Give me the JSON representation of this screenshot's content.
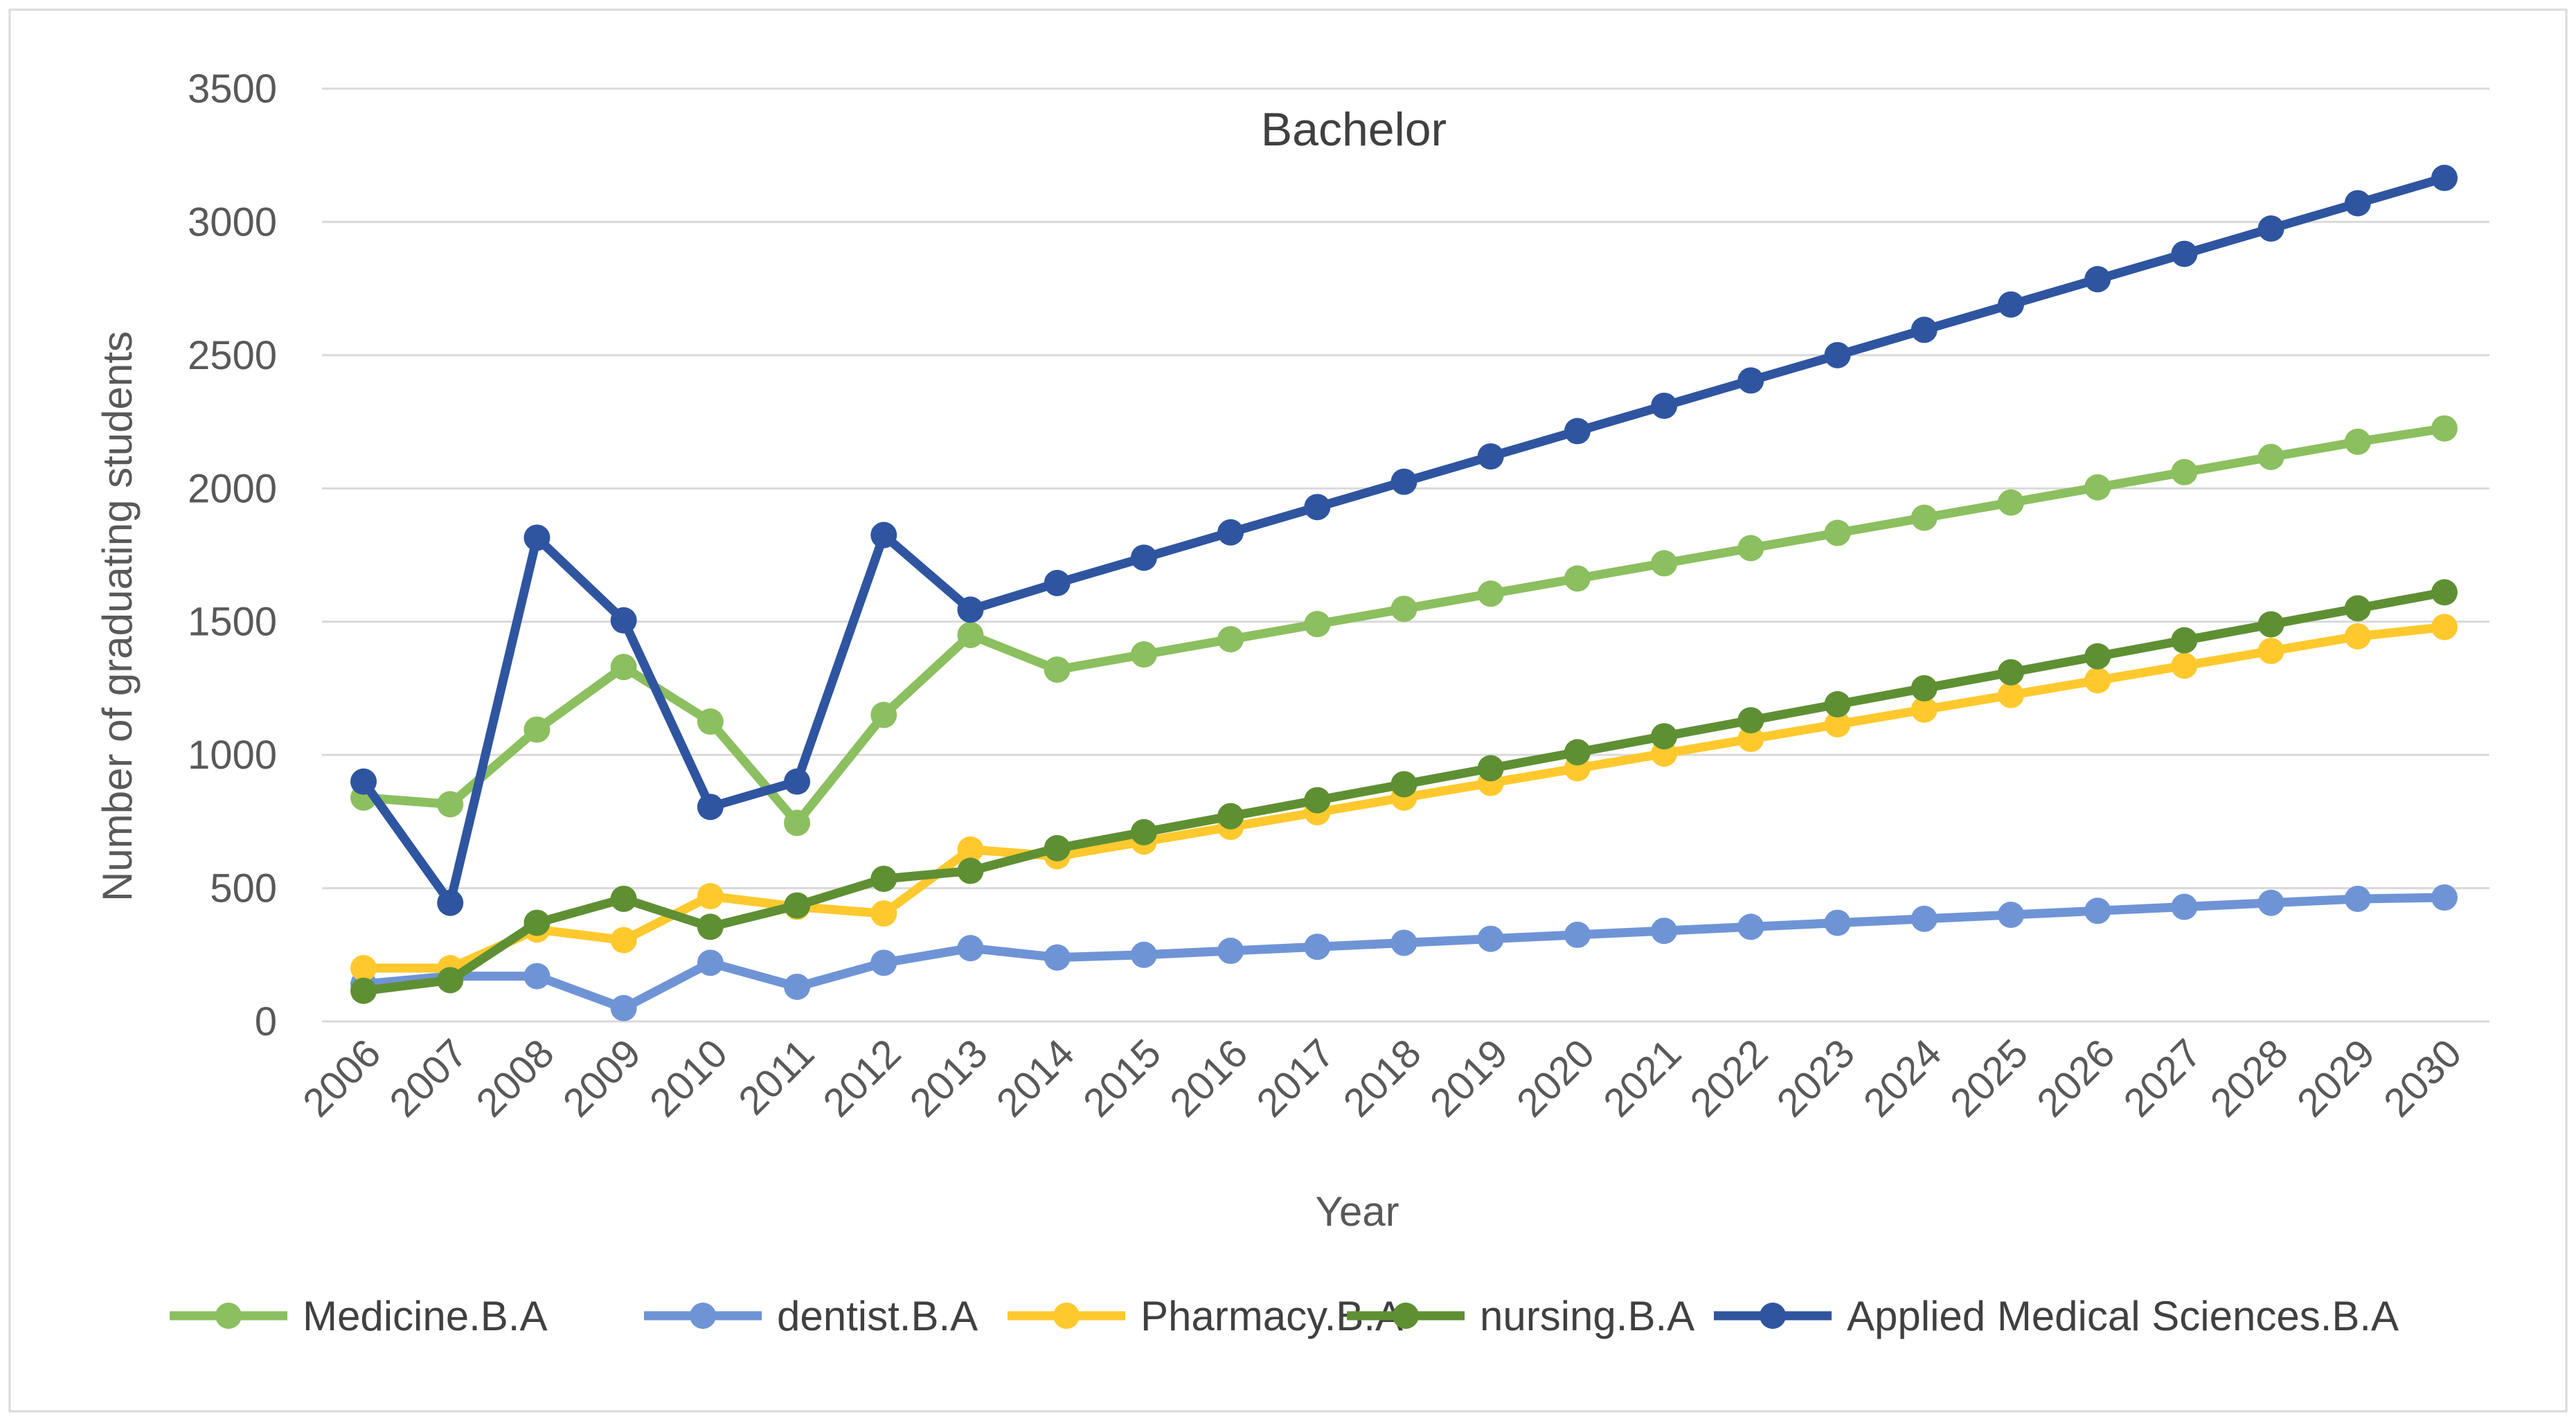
{
  "chart_data": {
    "type": "line",
    "title": "Bachelor",
    "xlabel": "Year",
    "ylabel": "Number of graduating students",
    "ylim": [
      0,
      3500
    ],
    "yticks": [
      0,
      500,
      1000,
      1500,
      2000,
      2500,
      3000,
      3500
    ],
    "grid": true,
    "legend_position": "bottom",
    "categories": [
      "2006",
      "2007",
      "2008",
      "2009",
      "2010",
      "2011",
      "2012",
      "2013",
      "2014",
      "2015",
      "2016",
      "2017",
      "2018",
      "2019",
      "2020",
      "2021",
      "2022",
      "2023",
      "2024",
      "2025",
      "2026",
      "2027",
      "2028",
      "2029",
      "2030"
    ],
    "series": [
      {
        "name": "Medicine.B.A",
        "color": "#8CBF5F",
        "values": [
          840,
          815,
          1095,
          1330,
          1125,
          745,
          1150,
          1450,
          1320,
          1377,
          1434,
          1491,
          1548,
          1605,
          1662,
          1719,
          1776,
          1833,
          1890,
          1947,
          2004,
          2061,
          2118,
          2175,
          2225
        ]
      },
      {
        "name": "dentist.B.A",
        "color": "#6F94D6",
        "values": [
          140,
          170,
          170,
          50,
          220,
          130,
          220,
          275,
          240,
          250,
          265,
          280,
          295,
          310,
          325,
          340,
          355,
          370,
          385,
          400,
          415,
          430,
          445,
          460,
          465
        ]
      },
      {
        "name": "Pharmacy.B.A",
        "color": "#FFC92E",
        "values": [
          200,
          200,
          345,
          305,
          470,
          430,
          405,
          645,
          620,
          675,
          730,
          785,
          840,
          895,
          950,
          1005,
          1060,
          1115,
          1170,
          1225,
          1280,
          1335,
          1390,
          1445,
          1480
        ]
      },
      {
        "name": "nursing.B.A",
        "color": "#5F8F33",
        "values": [
          115,
          155,
          370,
          460,
          355,
          435,
          535,
          565,
          650,
          710,
          770,
          830,
          890,
          950,
          1010,
          1070,
          1130,
          1190,
          1250,
          1310,
          1370,
          1430,
          1490,
          1550,
          1610
        ]
      },
      {
        "name": "Applied Medical Sciences.B.A",
        "color": "#2F55A0",
        "values": [
          900,
          445,
          1815,
          1505,
          805,
          900,
          1825,
          1545,
          1645,
          1740,
          1835,
          1930,
          2025,
          2120,
          2215,
          2310,
          2405,
          2500,
          2595,
          2690,
          2785,
          2880,
          2975,
          3070,
          3165
        ]
      }
    ]
  }
}
